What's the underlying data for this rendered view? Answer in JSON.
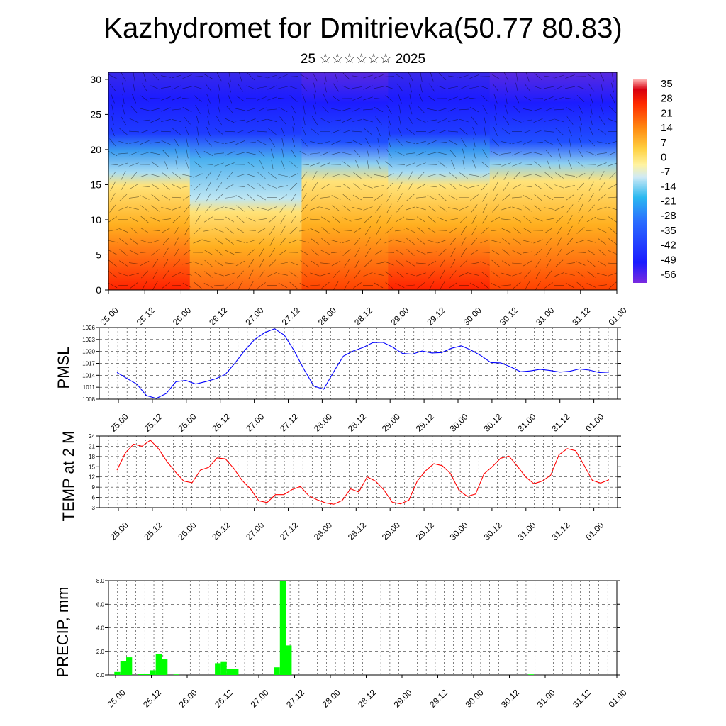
{
  "title": "Kazhydromet for Dmitrievka(50.77 80.83)",
  "subtitle": "25 ☆☆☆☆☆☆ 2025",
  "chart_data": [
    {
      "type": "heatmap",
      "xlabel": "",
      "ylabel": "",
      "x_ticks": [
        "25.00",
        "25.12",
        "26.00",
        "26.12",
        "27.00",
        "27.12",
        "28.00",
        "28.12",
        "29.00",
        "29.12",
        "30.00",
        "30.12",
        "31.00",
        "31.12",
        "01.00"
      ],
      "y_ticks": [
        "0",
        "5",
        "10",
        "15",
        "20",
        "25",
        "30"
      ],
      "ylim": [
        0,
        31
      ],
      "colorbar_labels": [
        "35",
        "28",
        "21",
        "14",
        "7",
        "0",
        "-7",
        "-14",
        "-21",
        "-28",
        "-35",
        "-42",
        "-49",
        "-56"
      ],
      "colorbar_range": [
        -60,
        38
      ],
      "note_colors": {
        "warm": "#ff2a00",
        "mid": "#ffd24a",
        "cold": "#1a1aff",
        "coldest": "#7a2ae0"
      },
      "wind_barbs": true
    },
    {
      "type": "line",
      "ylabel": "PMSL",
      "color": "#0000ff",
      "y_ticks": [
        "1008",
        "1011",
        "1014",
        "1017",
        "1020",
        "1023",
        "1026"
      ],
      "ylim": [
        1008,
        1026
      ],
      "x_ticks": [
        "25.00",
        "25.12",
        "26.00",
        "26.12",
        "27.00",
        "27.12",
        "28.00",
        "28.12",
        "29.00",
        "29.12",
        "30.00",
        "30.12",
        "31.00",
        "31.12",
        "01.00"
      ],
      "values": [
        1014.7,
        1013.2,
        1011.8,
        1008.9,
        1008.2,
        1009.4,
        1012.4,
        1012.7,
        1011.8,
        1012.4,
        1013.1,
        1014.2,
        1017.1,
        1020.3,
        1023.0,
        1024.7,
        1025.7,
        1024.1,
        1020.2,
        1015.5,
        1011.3,
        1010.5,
        1014.8,
        1018.8,
        1020.1,
        1021.0,
        1022.2,
        1022.3,
        1021.1,
        1019.5,
        1019.3,
        1020.1,
        1019.6,
        1019.7,
        1020.8,
        1021.4,
        1020.3,
        1018.9,
        1017.2,
        1017.1,
        1016.1,
        1014.9,
        1015.1,
        1015.5,
        1015.2,
        1014.8,
        1015.0,
        1015.6,
        1015.3,
        1014.7,
        1014.8
      ]
    },
    {
      "type": "line",
      "ylabel": "TEMP at 2 M",
      "color": "#ff0000",
      "y_ticks": [
        "3",
        "6",
        "9",
        "12",
        "15",
        "18",
        "21",
        "24"
      ],
      "ylim": [
        3,
        24
      ],
      "x_ticks": [
        "25.00",
        "25.12",
        "26.00",
        "26.12",
        "27.00",
        "27.12",
        "28.00",
        "28.12",
        "29.00",
        "29.12",
        "30.00",
        "30.12",
        "31.00",
        "31.12",
        "01.00"
      ],
      "values": [
        14.0,
        19.0,
        21.6,
        21.0,
        22.8,
        20.2,
        16.5,
        13.5,
        10.8,
        10.3,
        14.0,
        14.8,
        17.6,
        17.3,
        14.5,
        11.0,
        8.5,
        5.0,
        4.5,
        6.8,
        6.8,
        8.3,
        9.2,
        6.5,
        5.3,
        4.4,
        4.0,
        5.1,
        8.5,
        7.6,
        12.0,
        10.8,
        8.2,
        4.6,
        4.1,
        5.2,
        10.8,
        13.8,
        15.9,
        15.3,
        13.0,
        8.1,
        6.3,
        7.0,
        12.9,
        15.0,
        17.5,
        18.1,
        15.2,
        12.0,
        10.0,
        10.8,
        12.5,
        18.5,
        20.3,
        19.7,
        15.5,
        11.0,
        10.2,
        11.2
      ]
    },
    {
      "type": "bar",
      "ylabel": "PRECIP, mm",
      "color": "#00ff00",
      "y_ticks": [
        "0.0",
        "2.0",
        "4.0",
        "6.0",
        "8.0"
      ],
      "ylim": [
        0,
        8
      ],
      "x_ticks": [
        "25.00",
        "25.12",
        "26.00",
        "26.12",
        "27.00",
        "27.12",
        "28.00",
        "28.12",
        "29.00",
        "29.12",
        "30.00",
        "30.12",
        "31.00",
        "31.12",
        "01.00"
      ],
      "values": [
        0,
        0.25,
        1.2,
        1.5,
        0,
        0.1,
        0.1,
        0.4,
        1.8,
        1.35,
        0,
        0.05,
        0,
        0,
        0,
        0,
        0,
        0,
        1.0,
        1.1,
        0.5,
        0.5,
        0,
        0,
        0,
        0,
        0,
        0,
        0.65,
        8.0,
        2.5,
        0,
        0,
        0,
        0,
        0,
        0,
        0,
        0,
        0,
        0,
        0,
        0,
        0,
        0,
        0,
        0,
        0,
        0,
        0,
        0,
        0,
        0,
        0,
        0,
        0,
        0,
        0,
        0,
        0,
        0,
        0,
        0,
        0,
        0,
        0,
        0,
        0,
        0,
        0,
        0,
        0.05,
        0,
        0,
        0,
        0,
        0,
        0,
        0,
        0,
        0,
        0,
        0,
        0,
        0,
        0
      ]
    }
  ]
}
